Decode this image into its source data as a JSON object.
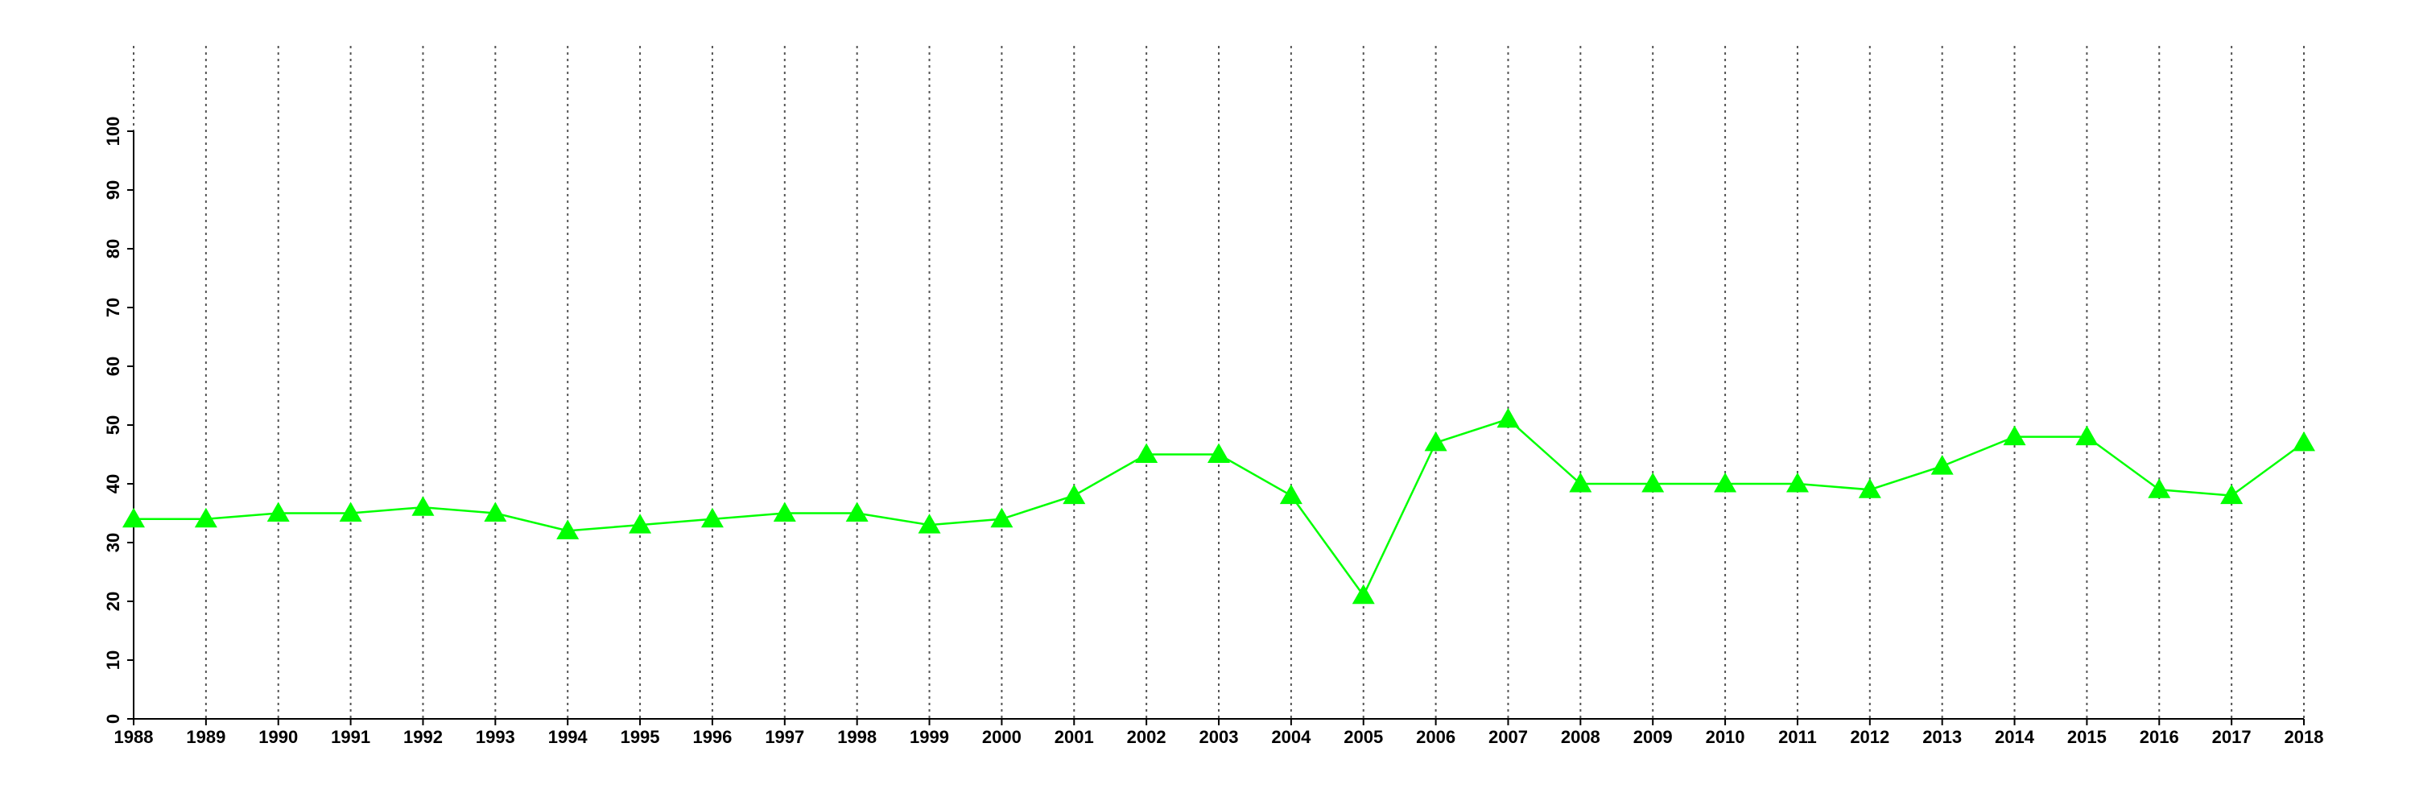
{
  "chart_data": {
    "type": "line",
    "marker": "triangle",
    "grid": "x",
    "categories": [
      "1988",
      "1989",
      "1990",
      "1991",
      "1992",
      "1993",
      "1994",
      "1995",
      "1996",
      "1997",
      "1998",
      "1999",
      "2000",
      "2001",
      "2002",
      "2003",
      "2004",
      "2005",
      "2006",
      "2007",
      "2008",
      "2009",
      "2010",
      "2011",
      "2012",
      "2013",
      "2014",
      "2015",
      "2016",
      "2017",
      "2018"
    ],
    "series": [
      {
        "color": "#00ff00",
        "values": [
          34,
          34,
          35,
          35,
          36,
          35,
          32,
          33,
          34,
          35,
          35,
          33,
          34,
          38,
          45,
          45,
          38,
          21,
          47,
          51,
          40,
          40,
          40,
          40,
          39,
          43,
          48,
          48,
          39,
          38,
          47
        ]
      }
    ],
    "ylim": [
      0,
      100
    ],
    "yticks": [
      0,
      10,
      20,
      30,
      40,
      50,
      60,
      70,
      80,
      90,
      100
    ]
  }
}
